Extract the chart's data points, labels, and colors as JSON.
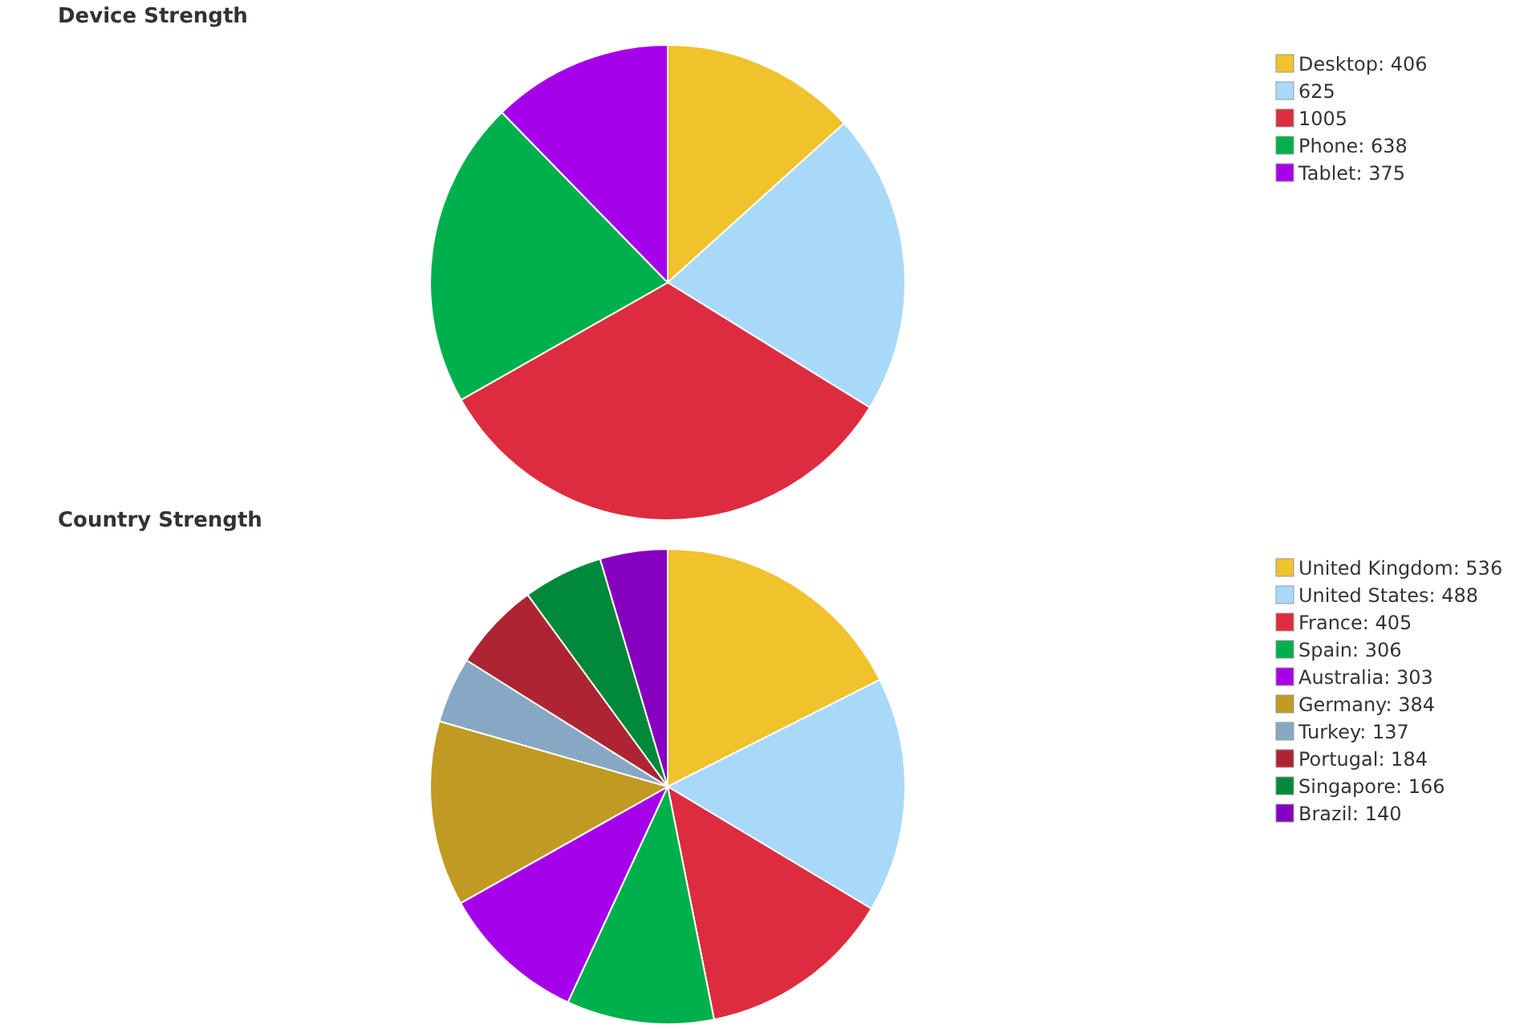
{
  "chart_data": [
    {
      "type": "pie",
      "title": "Device Strength",
      "categories": [
        "Desktop: 406",
        "625",
        "1005",
        "Phone: 638",
        "Tablet: 375"
      ],
      "values": [
        406,
        625,
        1005,
        638,
        375
      ],
      "colors": [
        "#f0c22b",
        "#a9d9f8",
        "#dd2c3f",
        "#00b04c",
        "#a600ea"
      ],
      "legend": "top right"
    },
    {
      "type": "pie",
      "title": "Country Strength",
      "categories": [
        "United Kingdom: 536",
        "United States: 488",
        "France: 405",
        "Spain: 306",
        "Australia: 303",
        "Germany: 384",
        "Turkey: 137",
        "Portugal: 184",
        "Singapore: 166",
        "Brazil: 140"
      ],
      "values": [
        536,
        488,
        405,
        306,
        303,
        384,
        137,
        184,
        166,
        140
      ],
      "colors": [
        "#f0c22b",
        "#a9d9f8",
        "#dd2c3f",
        "#00b04c",
        "#a600ea",
        "#c09a22",
        "#87a8c4",
        "#ae2433",
        "#00893b",
        "#8600c0"
      ],
      "legend": "top right"
    }
  ]
}
